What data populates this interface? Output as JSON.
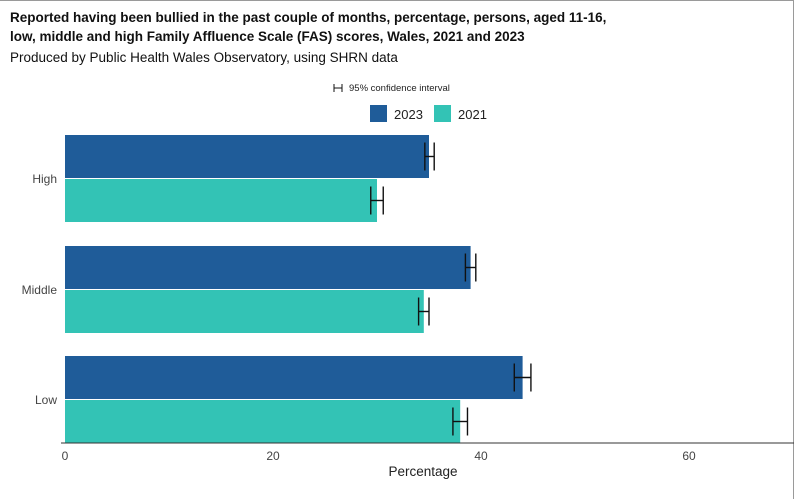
{
  "title": "Reported having been bullied in the past couple of months, percentage, persons, aged 11-16, low, middle and high Family Affluence Scale (FAS) scores, Wales, 2021 and 2023",
  "subtitle": "Produced by Public Health Wales Observatory, using SHRN data",
  "colors": {
    "2023": "#1f5c99",
    "2021": "#33c3b5"
  },
  "chart_data": {
    "type": "bar",
    "orientation": "horizontal",
    "categories": [
      "High",
      "Middle",
      "Low"
    ],
    "series": [
      {
        "name": "2023",
        "values": [
          35.0,
          39.0,
          44.0
        ],
        "ci_low": [
          34.6,
          38.5,
          43.2
        ],
        "ci_high": [
          35.5,
          39.5,
          44.8
        ]
      },
      {
        "name": "2021",
        "values": [
          30.0,
          34.5,
          38.0
        ],
        "ci_low": [
          29.4,
          34.0,
          37.3
        ],
        "ci_high": [
          30.6,
          35.0,
          38.7
        ]
      }
    ],
    "xlabel": "Percentage",
    "xticks": [
      0,
      20,
      40,
      60
    ],
    "xlim": [
      0,
      70
    ],
    "ci_legend": "95% confidence interval",
    "legend": [
      "2023",
      "2021"
    ],
    "legend_position": "top"
  }
}
